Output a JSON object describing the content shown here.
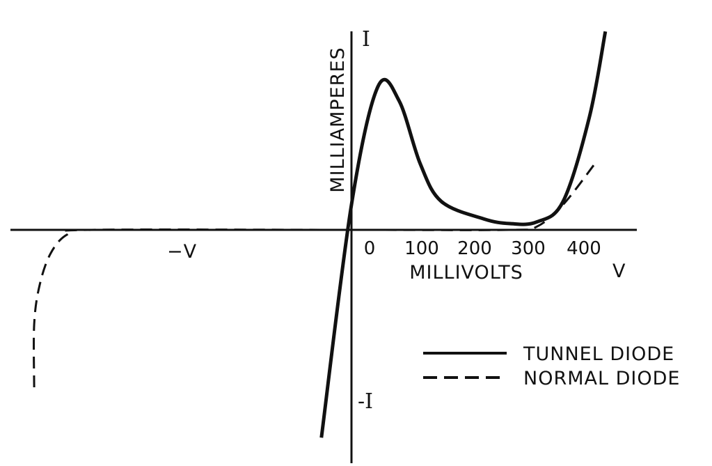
{
  "chart_data": {
    "type": "line",
    "title": "",
    "xlabel": "MILLIVOLTS",
    "ylabel": "MILLIAMPERES",
    "x_ticks": [
      "0",
      "100",
      "200",
      "300",
      "400"
    ],
    "x_axis_end_label": "V",
    "x_negative_label": "−V",
    "y_axis_top_label": "I",
    "y_axis_bottom_label": "-I",
    "legend_position": "bottom-right",
    "series": [
      {
        "name": "TUNNEL DIODE",
        "style": "solid",
        "points": [
          [
            -110,
            -1.32
          ],
          [
            0,
            0.16
          ],
          [
            50,
            0.91
          ],
          [
            90,
            0.82
          ],
          [
            130,
            0.42
          ],
          [
            170,
            0.18
          ],
          [
            250,
            0.07
          ],
          [
            300,
            0.04
          ],
          [
            350,
            0.05
          ],
          [
            400,
            0.18
          ],
          [
            450,
            0.72
          ],
          [
            480,
            1.26
          ]
        ]
      },
      {
        "name": "NORMAL DIODE",
        "style": "dashed",
        "points": [
          [
            -1160,
            -1.0
          ],
          [
            -1160,
            -0.6
          ],
          [
            -1140,
            -0.35
          ],
          [
            -1100,
            -0.15
          ],
          [
            -1040,
            -0.03
          ],
          [
            -950,
            0
          ],
          [
            0,
            0
          ],
          [
            300,
            0
          ],
          [
            350,
            0.02
          ],
          [
            400,
            0.16
          ],
          [
            460,
            0.42
          ]
        ]
      }
    ],
    "xlim": [
      -1200,
      520
    ],
    "ylim": [
      -1.35,
      1.35
    ],
    "colors": {
      "line": "#111111",
      "background": "#ffffff"
    }
  }
}
